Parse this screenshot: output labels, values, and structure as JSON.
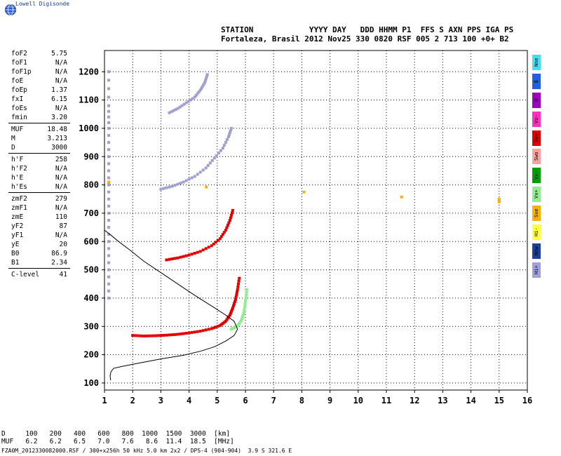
{
  "brand": "Lowell Digisonde",
  "header": {
    "line1": "STATION            YYYY DAY   DDD HHMM P1  FFS S AXN PPS IGA PS",
    "line2": "Fortaleza, Brasil 2012 Nov25 330 0820 RSF 005 2 713 100 +0+ B2"
  },
  "params": [
    [
      [
        "foF2",
        "5.75"
      ],
      [
        "foF1",
        "N/A"
      ],
      [
        "foF1p",
        "N/A"
      ],
      [
        "foE",
        "N/A"
      ],
      [
        "foEp",
        "1.37"
      ],
      [
        "fxI",
        "6.15"
      ],
      [
        "foEs",
        "N/A"
      ],
      [
        "fmin",
        "3.20"
      ]
    ],
    [
      [
        "MUF",
        "18.48"
      ],
      [
        "M",
        "3.213"
      ],
      [
        "D",
        "3000"
      ]
    ],
    [
      [
        "h'F",
        "258"
      ],
      [
        "h'F2",
        "N/A"
      ],
      [
        "h'E",
        "N/A"
      ],
      [
        "h'Es",
        "N/A"
      ]
    ],
    [
      [
        "zmF2",
        "279"
      ],
      [
        "zmF1",
        "N/A"
      ],
      [
        "zmE",
        "110"
      ],
      [
        "yF2",
        "87"
      ],
      [
        "yF1",
        "N/A"
      ],
      [
        "yE",
        "20"
      ],
      [
        "B0",
        "86.9"
      ],
      [
        "B1",
        "2.34"
      ]
    ],
    [
      [
        "C-level",
        "41"
      ]
    ]
  ],
  "legend": [
    {
      "label": "Nne",
      "color": "#40e0f0"
    },
    {
      "label": "E",
      "color": "#2060e0"
    },
    {
      "label": "W",
      "color": "#a000c0"
    },
    {
      "label": "Vo-",
      "color": "#ff30c0"
    },
    {
      "label": "Vo+",
      "color": "#e00000"
    },
    {
      "label": "Swo",
      "color": "#ffa0a0"
    },
    {
      "label": "Vx-",
      "color": "#00a000"
    },
    {
      "label": "Vx+",
      "color": "#90ee90"
    },
    {
      "label": "Sxe",
      "color": "#ffb000"
    },
    {
      "label": "Hi-",
      "color": "#ffff40"
    },
    {
      "label": "Nnw",
      "color": "#1a40a0"
    },
    {
      "label": "Hi+",
      "color": "#a0a0e0"
    }
  ],
  "muf_table": {
    "line1": "D     100   200   400   600   800  1000  1500  3000  [km]",
    "line2": "MUF   6.2   6.2   6.5   7.0   7.6   8.6  11.4  18.5  [MHz]"
  },
  "footer": "FZA0M_2012330082000.RSF / 300+x256h 50 kHz 5.0 km 2x2 / DPS-4 (904-904)  3.9 S 321.6 E",
  "chart_data": {
    "type": "scatter",
    "xlim": [
      1,
      16
    ],
    "ylim": [
      75,
      1275
    ],
    "xticks": [
      1,
      2,
      3,
      4,
      5,
      6,
      7,
      8,
      9,
      10,
      11,
      12,
      13,
      14,
      15,
      16
    ],
    "yticks": [
      100,
      200,
      300,
      400,
      500,
      600,
      700,
      800,
      900,
      1000,
      1100,
      1200
    ],
    "grid": true,
    "profile": [
      [
        1.22,
        110
      ],
      [
        1.2,
        125
      ],
      [
        1.23,
        140
      ],
      [
        1.33,
        152
      ],
      [
        1.6,
        158
      ],
      [
        2.2,
        170
      ],
      [
        3.0,
        185
      ],
      [
        3.8,
        198
      ],
      [
        4.4,
        212
      ],
      [
        4.9,
        228
      ],
      [
        5.3,
        248
      ],
      [
        5.6,
        268
      ],
      [
        5.72,
        290
      ],
      [
        5.6,
        318
      ],
      [
        5.3,
        340
      ],
      [
        4.8,
        372
      ],
      [
        4.2,
        410
      ],
      [
        3.6,
        450
      ],
      [
        3.0,
        490
      ],
      [
        2.4,
        530
      ],
      [
        1.9,
        570
      ],
      [
        1.5,
        600
      ],
      [
        1.2,
        625
      ],
      [
        1.0,
        640
      ]
    ],
    "traces": [
      {
        "name": "1st hop O",
        "color": "#e00000",
        "points": [
          [
            2.0,
            268
          ],
          [
            2.4,
            266
          ],
          [
            2.8,
            267
          ],
          [
            3.2,
            269
          ],
          [
            3.6,
            272
          ],
          [
            4.0,
            277
          ],
          [
            4.4,
            283
          ],
          [
            4.8,
            292
          ],
          [
            5.1,
            303
          ],
          [
            5.3,
            318
          ],
          [
            5.45,
            340
          ],
          [
            5.55,
            365
          ],
          [
            5.65,
            395
          ],
          [
            5.72,
            430
          ],
          [
            5.78,
            470
          ]
        ]
      },
      {
        "name": "1st hop X",
        "color": "#90ee90",
        "points": [
          [
            5.5,
            290
          ],
          [
            5.7,
            300
          ],
          [
            5.85,
            320
          ],
          [
            5.95,
            350
          ],
          [
            6.0,
            390
          ],
          [
            6.05,
            430
          ]
        ]
      },
      {
        "name": "2nd hop",
        "color": "#e00000",
        "points": [
          [
            3.2,
            535
          ],
          [
            3.6,
            542
          ],
          [
            4.0,
            552
          ],
          [
            4.4,
            565
          ],
          [
            4.8,
            585
          ],
          [
            5.1,
            610
          ],
          [
            5.3,
            640
          ],
          [
            5.45,
            675
          ],
          [
            5.55,
            710
          ]
        ]
      },
      {
        "name": "3rd hop",
        "color": "#a0a0d0",
        "points": [
          [
            3.0,
            785
          ],
          [
            3.4,
            795
          ],
          [
            3.8,
            810
          ],
          [
            4.2,
            830
          ],
          [
            4.6,
            860
          ],
          [
            4.9,
            895
          ],
          [
            5.2,
            930
          ],
          [
            5.4,
            970
          ],
          [
            5.5,
            1000
          ]
        ]
      },
      {
        "name": "4th hop",
        "color": "#a0a0d0",
        "points": [
          [
            3.3,
            1055
          ],
          [
            3.6,
            1070
          ],
          [
            3.9,
            1090
          ],
          [
            4.2,
            1110
          ],
          [
            4.4,
            1135
          ],
          [
            4.55,
            1160
          ],
          [
            4.65,
            1190
          ]
        ]
      },
      {
        "name": "left edge",
        "color": "#a0a0d0",
        "points": [
          [
            1.15,
            1200
          ],
          [
            1.15,
            1080
          ],
          [
            1.15,
            1000
          ],
          [
            1.15,
            900
          ],
          [
            1.15,
            800
          ],
          [
            1.15,
            700
          ],
          [
            1.15,
            600
          ],
          [
            1.15,
            500
          ],
          [
            1.15,
            400
          ]
        ]
      },
      {
        "name": "misc",
        "color": "#ffb000",
        "points": [
          [
            15.0,
            750
          ],
          [
            15.0,
            740
          ],
          [
            1.15,
            810
          ]
        ]
      }
    ]
  }
}
